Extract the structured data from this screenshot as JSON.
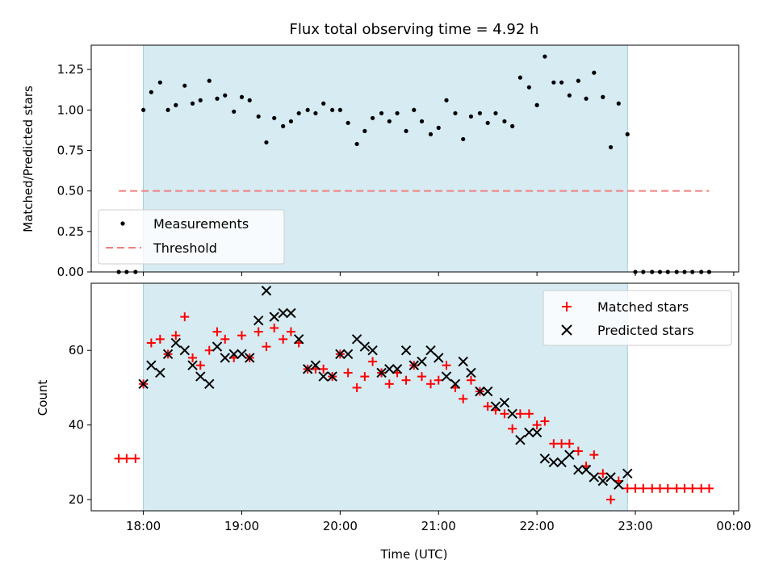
{
  "chart_data": [
    {
      "type": "scatter",
      "title": "Flux total observing time = 4.92 h",
      "xlabel": "",
      "ylabel": "Matched/Predicted stars",
      "xlim": [
        17.47,
        24.05
      ],
      "ylim": [
        0,
        1.4
      ],
      "yticks": [
        "0.00",
        "0.25",
        "0.50",
        "0.75",
        "1.00",
        "1.25"
      ],
      "shaded_region": [
        18.0,
        22.92
      ],
      "legend": {
        "position": "lower-left",
        "entries": [
          "Measurements",
          "Threshold"
        ]
      },
      "threshold": {
        "name": "Threshold",
        "x": [
          17.75,
          23.75
        ],
        "y": 0.5
      },
      "series": [
        {
          "name": "Measurements",
          "marker": "dot",
          "x": [
            17.75,
            17.83,
            17.92,
            18.0,
            18.08,
            18.17,
            18.25,
            18.33,
            18.42,
            18.5,
            18.58,
            18.67,
            18.75,
            18.83,
            18.92,
            19.0,
            19.08,
            19.17,
            19.25,
            19.33,
            19.42,
            19.5,
            19.58,
            19.67,
            19.75,
            19.83,
            19.92,
            20.0,
            20.08,
            20.17,
            20.25,
            20.33,
            20.42,
            20.5,
            20.58,
            20.67,
            20.75,
            20.83,
            20.92,
            21.0,
            21.08,
            21.17,
            21.25,
            21.33,
            21.42,
            21.5,
            21.58,
            21.67,
            21.75,
            21.83,
            21.92,
            22.0,
            22.08,
            22.17,
            22.25,
            22.33,
            22.42,
            22.5,
            22.58,
            22.67,
            22.75,
            22.83,
            22.92,
            23.0,
            23.08,
            23.17,
            23.25,
            23.33,
            23.42,
            23.5,
            23.58,
            23.67,
            23.75
          ],
          "y": [
            0,
            0,
            0,
            1.0,
            1.11,
            1.17,
            1.0,
            1.03,
            1.15,
            1.04,
            1.06,
            1.18,
            1.07,
            1.09,
            0.99,
            1.08,
            1.06,
            0.96,
            0.8,
            0.95,
            0.9,
            0.93,
            0.98,
            1.0,
            0.98,
            1.04,
            1.0,
            1.0,
            0.92,
            0.79,
            0.87,
            0.95,
            0.98,
            0.93,
            0.98,
            0.87,
            1.0,
            0.93,
            0.85,
            0.89,
            1.06,
            0.98,
            0.82,
            0.96,
            0.98,
            0.92,
            0.98,
            0.93,
            0.9,
            1.2,
            1.14,
            1.03,
            1.33,
            1.17,
            1.17,
            1.09,
            1.18,
            1.07,
            1.23,
            1.08,
            0.77,
            1.04,
            0.85,
            0,
            0,
            0,
            0,
            0,
            0,
            0,
            0,
            0,
            0
          ]
        }
      ]
    },
    {
      "type": "scatter",
      "title": "",
      "xlabel": "Time (UTC)",
      "ylabel": "Count",
      "xlim": [
        17.47,
        24.05
      ],
      "ylim": [
        17,
        78
      ],
      "yticks": [
        "20",
        "40",
        "60"
      ],
      "xticks": [
        "18:00",
        "19:00",
        "20:00",
        "21:00",
        "22:00",
        "23:00",
        "00:00"
      ],
      "shaded_region": [
        18.0,
        22.92
      ],
      "legend": {
        "position": "upper-right",
        "entries": [
          "Matched stars",
          "Predicted stars"
        ]
      },
      "series": [
        {
          "name": "Matched stars",
          "marker": "plus",
          "color": "#ff0000",
          "x": [
            17.75,
            17.83,
            17.92,
            18.0,
            18.08,
            18.17,
            18.25,
            18.33,
            18.42,
            18.5,
            18.58,
            18.67,
            18.75,
            18.83,
            18.92,
            19.0,
            19.08,
            19.17,
            19.25,
            19.33,
            19.42,
            19.5,
            19.58,
            19.67,
            19.75,
            19.83,
            19.92,
            20.0,
            20.08,
            20.17,
            20.25,
            20.33,
            20.42,
            20.5,
            20.58,
            20.67,
            20.75,
            20.83,
            20.92,
            21.0,
            21.08,
            21.17,
            21.25,
            21.33,
            21.42,
            21.5,
            21.58,
            21.67,
            21.75,
            21.83,
            21.92,
            22.0,
            22.08,
            22.17,
            22.25,
            22.33,
            22.42,
            22.5,
            22.58,
            22.67,
            22.75,
            22.83,
            22.92,
            23.0,
            23.08,
            23.17,
            23.25,
            23.33,
            23.42,
            23.5,
            23.58,
            23.67,
            23.75
          ],
          "y": [
            31,
            31,
            31,
            51,
            62,
            63,
            59,
            64,
            69,
            58,
            56,
            60,
            65,
            63,
            58,
            64,
            58,
            65,
            61,
            66,
            63,
            65,
            62,
            55,
            55,
            55,
            53,
            59,
            54,
            50,
            53,
            57,
            54,
            51,
            54,
            52,
            56,
            53,
            51,
            52,
            56,
            50,
            47,
            52,
            49,
            45,
            44,
            43,
            39,
            43,
            43,
            40,
            41,
            35,
            35,
            35,
            33,
            29,
            32,
            27,
            20,
            25,
            23,
            23,
            23,
            23,
            23,
            23,
            23,
            23,
            23,
            23,
            23
          ]
        },
        {
          "name": "Predicted stars",
          "marker": "x",
          "color": "#000000",
          "x": [
            18.0,
            18.08,
            18.17,
            18.25,
            18.33,
            18.42,
            18.5,
            18.58,
            18.67,
            18.75,
            18.83,
            18.92,
            19.0,
            19.08,
            19.17,
            19.25,
            19.33,
            19.42,
            19.5,
            19.58,
            19.67,
            19.75,
            19.83,
            19.92,
            20.0,
            20.08,
            20.17,
            20.25,
            20.33,
            20.42,
            20.5,
            20.58,
            20.67,
            20.75,
            20.83,
            20.92,
            21.0,
            21.08,
            21.17,
            21.25,
            21.33,
            21.42,
            21.5,
            21.58,
            21.67,
            21.75,
            21.83,
            21.92,
            22.0,
            22.08,
            22.17,
            22.25,
            22.33,
            22.42,
            22.5,
            22.58,
            22.67,
            22.75,
            22.83,
            22.92
          ],
          "y": [
            51,
            56,
            54,
            59,
            62,
            60,
            56,
            53,
            51,
            61,
            58,
            59,
            59,
            58,
            68,
            76,
            69,
            70,
            70,
            63,
            55,
            56,
            53,
            53,
            59,
            59,
            63,
            61,
            60,
            54,
            55,
            55,
            60,
            56,
            57,
            60,
            58,
            53,
            51,
            57,
            54,
            49,
            49,
            45,
            46,
            43,
            36,
            38,
            38,
            31,
            30,
            30,
            32,
            28,
            28,
            26,
            25,
            26,
            24,
            27
          ]
        }
      ]
    }
  ]
}
